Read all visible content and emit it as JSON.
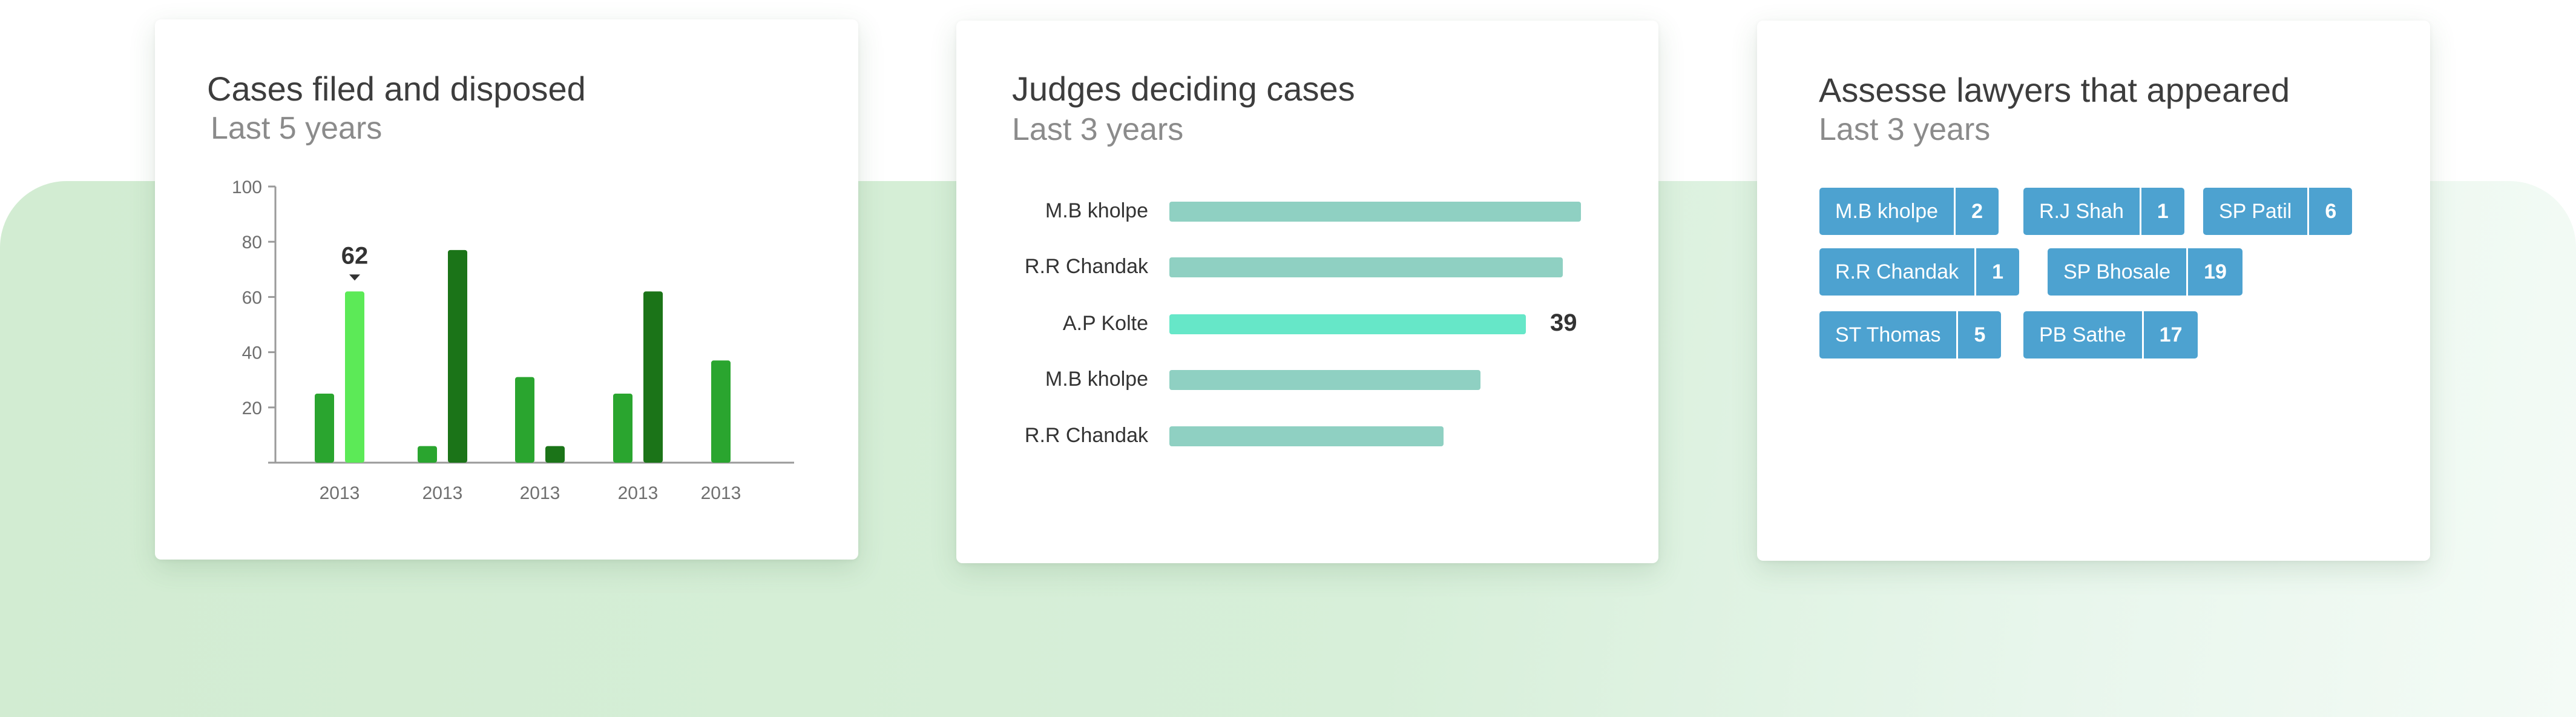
{
  "colors": {
    "bar_light_green": "#2aa52f",
    "bar_highlight_green": "#5cea57",
    "bar_dark_green": "#1b7418",
    "judge_bar": "#8fd0c2",
    "judge_bar_highlight": "#66e7c8",
    "lawyer_pill": "#4da2d0"
  },
  "cards": {
    "cases": {
      "title": "Cases filed and disposed",
      "subtitle": "Last 5 years"
    },
    "judges": {
      "title": "Judges deciding cases",
      "subtitle": "Last 3 years"
    },
    "lawyers": {
      "title": "Assesse lawyers that appeared",
      "subtitle": "Last 3 years"
    }
  },
  "chart_data": [
    {
      "type": "bar",
      "title": "Cases filed and disposed",
      "subtitle": "Last 5 years",
      "categories": [
        "2013",
        "2013",
        "2013",
        "2013",
        "2013"
      ],
      "series": [
        {
          "values": [
            25,
            6,
            31,
            25,
            37
          ],
          "color": "#2aa52f"
        },
        {
          "values": [
            62,
            77,
            6,
            62,
            null
          ],
          "color": "#1b7418"
        }
      ],
      "highlight": {
        "category_index": 0,
        "series_index": 1,
        "label": "62",
        "color": "#5cea57"
      },
      "yticks": [
        "20",
        "40",
        "60",
        "80",
        "100"
      ],
      "ylim": [
        0,
        100
      ],
      "xlabel": "",
      "ylabel": ""
    },
    {
      "type": "bar",
      "orientation": "horizontal",
      "title": "Judges deciding cases",
      "subtitle": "Last 3 years",
      "categories": [
        "M.B kholpe",
        "R.R Chandak",
        "A.P Kolte",
        "M.B kholpe",
        "R.R Chandak"
      ],
      "values": [
        45,
        43,
        39,
        34,
        30
      ],
      "highlight": {
        "index": 2,
        "label": "39"
      }
    }
  ],
  "lawyers": [
    {
      "name": "M.B kholpe",
      "count": "2"
    },
    {
      "name": "R.J Shah",
      "count": "1"
    },
    {
      "name": "SP Patil",
      "count": "6"
    },
    {
      "name": "R.R Chandak",
      "count": "1"
    },
    {
      "name": "SP Bhosale",
      "count": "19"
    },
    {
      "name": "ST Thomas",
      "count": "5"
    },
    {
      "name": "PB Sathe",
      "count": "17"
    }
  ]
}
